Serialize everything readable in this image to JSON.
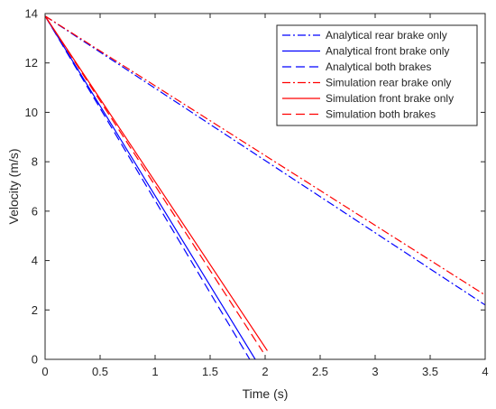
{
  "chart_data": {
    "type": "line",
    "title": "",
    "xlabel": "Time (s)",
    "ylabel": "Velocity (m/s)",
    "xlim": [
      0,
      4
    ],
    "ylim": [
      0,
      14
    ],
    "xticks": [
      "0",
      "0.5",
      "1",
      "1.5",
      "2",
      "2.5",
      "3",
      "3.5",
      "4"
    ],
    "yticks": [
      "0",
      "2",
      "4",
      "6",
      "8",
      "10",
      "12",
      "14"
    ],
    "grid": false,
    "legend_position": "top-right",
    "series": [
      {
        "name": "Analytical rear brake only",
        "color": "#0000ff",
        "style": "dashdot",
        "x": [
          0,
          4
        ],
        "y": [
          13.9,
          2.2
        ]
      },
      {
        "name": "Analytical front brake only",
        "color": "#0000ff",
        "style": "solid",
        "x": [
          0,
          1.91
        ],
        "y": [
          13.9,
          0
        ]
      },
      {
        "name": "Analytical both brakes",
        "color": "#0000ff",
        "style": "dashed",
        "x": [
          0,
          1.86
        ],
        "y": [
          13.9,
          0
        ]
      },
      {
        "name": "Simulation rear brake only",
        "color": "#ff0000",
        "style": "dashdot",
        "x": [
          0,
          4
        ],
        "y": [
          13.9,
          2.6
        ]
      },
      {
        "name": "Simulation front brake only",
        "color": "#ff0000",
        "style": "solid",
        "x": [
          0,
          2.02
        ],
        "y": [
          13.9,
          0.35
        ]
      },
      {
        "name": "Simulation both brakes",
        "color": "#ff0000",
        "style": "dashed",
        "x": [
          0,
          1.98
        ],
        "y": [
          13.9,
          0.3
        ]
      }
    ]
  }
}
